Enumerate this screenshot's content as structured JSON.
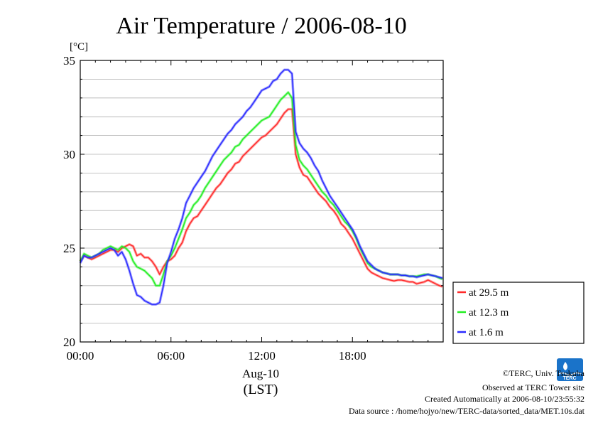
{
  "chart_data": {
    "type": "line",
    "title": "Air Temperature / 2006-08-10",
    "ylabel": "[°C]",
    "xlabel_date": "Aug-10",
    "xlabel_tz": "(LST)",
    "xlim": [
      0,
      24
    ],
    "ylim": [
      20,
      35
    ],
    "yticks": [
      20,
      25,
      30,
      35
    ],
    "ytick_labels": [
      "20",
      "25",
      "30",
      "35"
    ],
    "xticks": [
      0,
      6,
      12,
      18
    ],
    "xtick_labels": [
      "00:00",
      "06:00",
      "12:00",
      "18:00"
    ],
    "grid": true,
    "legend_position": "right",
    "x": [
      0.0,
      0.25,
      0.5,
      0.75,
      1.0,
      1.25,
      1.5,
      1.75,
      2.0,
      2.25,
      2.5,
      2.75,
      3.0,
      3.25,
      3.5,
      3.75,
      4.0,
      4.25,
      4.5,
      4.75,
      5.0,
      5.25,
      5.5,
      5.75,
      6.0,
      6.25,
      6.5,
      6.75,
      7.0,
      7.25,
      7.5,
      7.75,
      8.0,
      8.25,
      8.5,
      8.75,
      9.0,
      9.25,
      9.5,
      9.75,
      10.0,
      10.25,
      10.5,
      10.75,
      11.0,
      11.25,
      11.5,
      11.75,
      12.0,
      12.25,
      12.5,
      12.75,
      13.0,
      13.25,
      13.5,
      13.75,
      14.0,
      14.25,
      14.5,
      14.75,
      15.0,
      15.25,
      15.5,
      15.75,
      16.0,
      16.25,
      16.5,
      16.75,
      17.0,
      17.25,
      17.5,
      17.75,
      18.0,
      18.25,
      18.5,
      18.75,
      19.0,
      19.25,
      19.5,
      19.75,
      20.0,
      20.25,
      20.5,
      20.75,
      21.0,
      21.25,
      21.5,
      21.75,
      22.0,
      22.25,
      22.5,
      22.75,
      23.0,
      23.25,
      23.5,
      23.75,
      23.95
    ],
    "series": [
      {
        "name": "at 29.5 m",
        "color": "#ff2a2a",
        "values": [
          24.3,
          24.6,
          24.5,
          24.4,
          24.5,
          24.6,
          24.7,
          24.8,
          24.9,
          24.9,
          24.8,
          25.0,
          25.1,
          25.2,
          25.1,
          24.6,
          24.7,
          24.5,
          24.5,
          24.3,
          24.0,
          23.6,
          24.0,
          24.3,
          24.4,
          24.6,
          25.0,
          25.3,
          25.9,
          26.3,
          26.6,
          26.7,
          27.0,
          27.3,
          27.6,
          27.9,
          28.2,
          28.4,
          28.7,
          29.0,
          29.2,
          29.5,
          29.6,
          29.9,
          30.1,
          30.3,
          30.5,
          30.7,
          30.9,
          31.0,
          31.2,
          31.4,
          31.6,
          31.9,
          32.2,
          32.4,
          32.4,
          30.0,
          29.3,
          28.9,
          28.8,
          28.5,
          28.2,
          27.9,
          27.7,
          27.5,
          27.2,
          27.0,
          26.7,
          26.3,
          26.1,
          25.8,
          25.5,
          25.1,
          24.7,
          24.3,
          23.9,
          23.7,
          23.6,
          23.5,
          23.4,
          23.35,
          23.3,
          23.25,
          23.3,
          23.3,
          23.25,
          23.2,
          23.2,
          23.1,
          23.15,
          23.2,
          23.3,
          23.2,
          23.1,
          23.0,
          22.95
        ]
      },
      {
        "name": "at 12.3 m",
        "color": "#22ee22",
        "values": [
          24.3,
          24.7,
          24.6,
          24.5,
          24.6,
          24.7,
          24.9,
          25.0,
          25.1,
          25.0,
          24.9,
          25.1,
          25.0,
          24.8,
          24.3,
          24.0,
          23.9,
          23.8,
          23.6,
          23.4,
          23.0,
          23.0,
          23.6,
          24.3,
          24.6,
          25.0,
          25.5,
          26.0,
          26.6,
          26.9,
          27.3,
          27.5,
          27.8,
          28.2,
          28.5,
          28.8,
          29.1,
          29.4,
          29.7,
          29.9,
          30.1,
          30.4,
          30.5,
          30.8,
          31.0,
          31.2,
          31.4,
          31.6,
          31.8,
          31.9,
          32.0,
          32.3,
          32.6,
          32.9,
          33.1,
          33.3,
          33.0,
          30.5,
          29.7,
          29.4,
          29.2,
          28.9,
          28.6,
          28.3,
          28.0,
          27.8,
          27.5,
          27.3,
          27.0,
          26.7,
          26.4,
          26.2,
          25.9,
          25.5,
          25.0,
          24.6,
          24.2,
          24.0,
          23.9,
          23.8,
          23.7,
          23.65,
          23.6,
          23.6,
          23.6,
          23.55,
          23.55,
          23.5,
          23.5,
          23.5,
          23.55,
          23.6,
          23.6,
          23.55,
          23.5,
          23.4,
          23.35
        ]
      },
      {
        "name": "at 1.6 m",
        "color": "#2a2aff",
        "values": [
          24.2,
          24.6,
          24.5,
          24.5,
          24.6,
          24.7,
          24.8,
          24.9,
          25.0,
          24.9,
          24.6,
          24.8,
          24.4,
          23.8,
          23.1,
          22.5,
          22.4,
          22.2,
          22.1,
          22.0,
          22.0,
          22.1,
          23.0,
          24.2,
          24.8,
          25.5,
          26.0,
          26.6,
          27.4,
          27.8,
          28.2,
          28.5,
          28.8,
          29.1,
          29.5,
          29.9,
          30.2,
          30.5,
          30.8,
          31.1,
          31.3,
          31.6,
          31.8,
          32.0,
          32.3,
          32.5,
          32.8,
          33.1,
          33.4,
          33.5,
          33.6,
          33.9,
          34.0,
          34.3,
          34.5,
          34.5,
          34.3,
          31.2,
          30.6,
          30.3,
          30.1,
          29.8,
          29.4,
          29.1,
          28.6,
          28.2,
          27.8,
          27.5,
          27.2,
          26.9,
          26.6,
          26.3,
          26.0,
          25.6,
          25.1,
          24.7,
          24.3,
          24.1,
          23.9,
          23.8,
          23.7,
          23.65,
          23.6,
          23.6,
          23.6,
          23.55,
          23.55,
          23.5,
          23.5,
          23.45,
          23.5,
          23.55,
          23.6,
          23.55,
          23.5,
          23.45,
          23.4
        ]
      }
    ],
    "legend_order": [
      0,
      1,
      2
    ]
  },
  "footer": {
    "copyright": "©TERC, Univ. Tsukuba",
    "observed": "Observed at TERC Tower site",
    "created": "Created Automatically at 2006-08-10/23:55:32",
    "source": "Data source : /home/hojyo/new/TERC-data/sorted_data/MET.10s.dat"
  },
  "logo": {
    "text": "TERC",
    "color": "#1a73c9"
  }
}
